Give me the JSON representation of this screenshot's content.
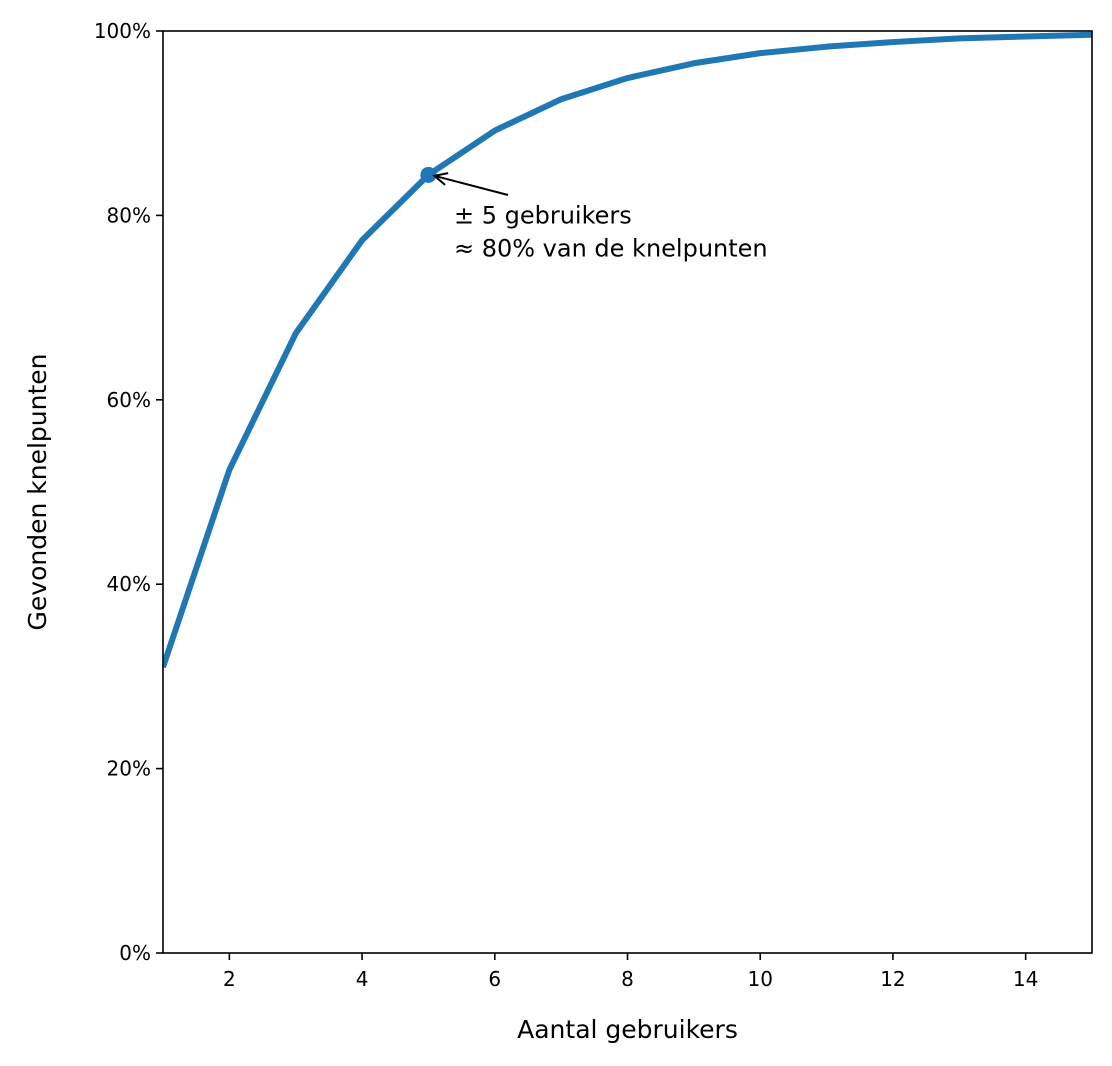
{
  "chart_data": {
    "type": "line",
    "title": "",
    "xlabel": "Aantal gebruikers",
    "ylabel": "Gevonden knelpunten",
    "xlim": [
      1,
      15
    ],
    "ylim": [
      0,
      1
    ],
    "grid": false,
    "legend": null,
    "x_ticks": [
      2,
      4,
      6,
      8,
      10,
      12,
      14
    ],
    "x_tick_labels": [
      "2",
      "4",
      "6",
      "8",
      "10",
      "12",
      "14"
    ],
    "y_ticks": [
      0,
      0.2,
      0.4,
      0.6,
      0.8,
      1.0
    ],
    "y_tick_labels": [
      "0%",
      "20%",
      "40%",
      "60%",
      "80%",
      "100%"
    ],
    "series": [
      {
        "name": "Gevonden knelpunten",
        "color": "#1f77b4",
        "x": [
          1,
          2,
          3,
          4,
          5,
          6,
          7,
          8,
          9,
          10,
          11,
          12,
          13,
          14,
          15
        ],
        "values": [
          0.31,
          0.524,
          0.672,
          0.773,
          0.844,
          0.892,
          0.926,
          0.949,
          0.965,
          0.976,
          0.983,
          0.988,
          0.992,
          0.994,
          0.996
        ]
      }
    ],
    "highlight_point": {
      "x": 5,
      "y": 0.844
    },
    "annotation": {
      "lines": [
        "± 5 gebruikers",
        "≈ 80% van de knelpunten"
      ],
      "text_x": 5.4,
      "text_y_line1": 0.8,
      "arrow_to": {
        "x": 5,
        "y": 0.844
      }
    }
  }
}
